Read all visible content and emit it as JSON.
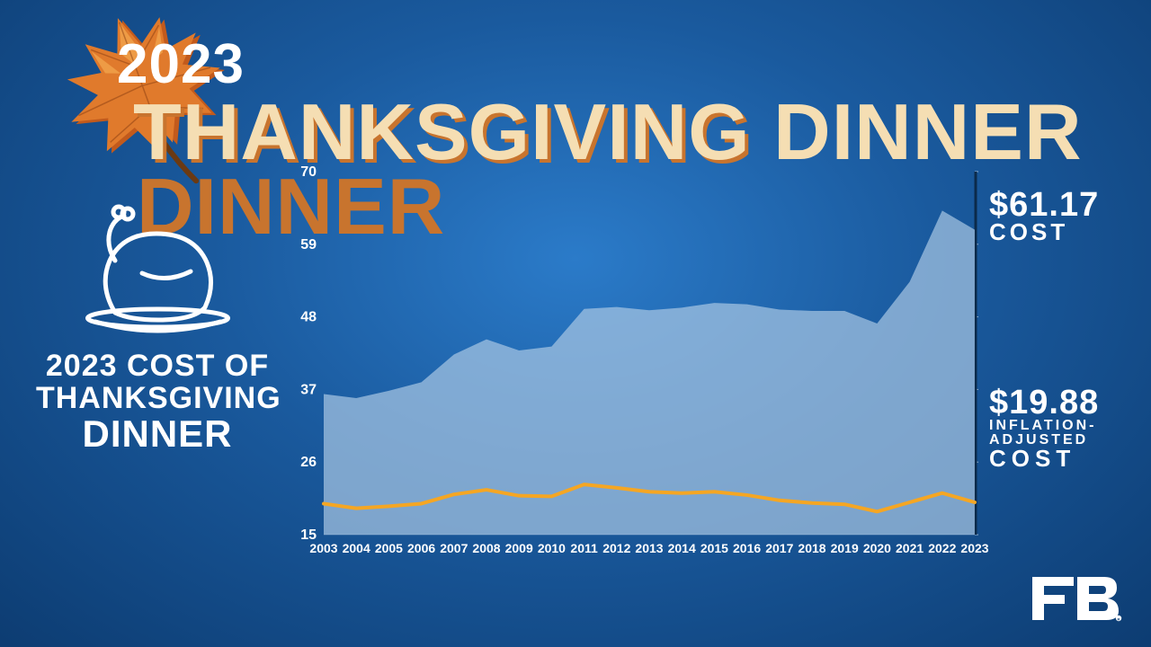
{
  "header": {
    "year": "2023",
    "title": "THANKSGIVING DINNER",
    "title_color_front": "#f5deb3",
    "title_color_shadow": "#c8742e",
    "title_fontsize": 88
  },
  "subtitle": {
    "line1": "2023 COST OF",
    "line2": "THANKSGIVING",
    "line3": "DINNER"
  },
  "chart": {
    "type": "area+line",
    "x_years": [
      2003,
      2004,
      2005,
      2006,
      2007,
      2008,
      2009,
      2010,
      2011,
      2012,
      2013,
      2014,
      2015,
      2016,
      2017,
      2018,
      2019,
      2020,
      2021,
      2022,
      2023
    ],
    "nominal_cost": [
      36.3,
      35.7,
      36.8,
      38.1,
      42.3,
      44.6,
      42.9,
      43.5,
      49.2,
      49.5,
      49.0,
      49.4,
      50.1,
      49.9,
      49.1,
      48.9,
      48.9,
      47.0,
      53.3,
      64.1,
      61.2
    ],
    "inflation_adjusted": [
      19.7,
      19.0,
      19.3,
      19.7,
      21.1,
      21.8,
      20.9,
      20.8,
      22.6,
      22.1,
      21.5,
      21.3,
      21.5,
      21.0,
      20.2,
      19.8,
      19.6,
      18.5,
      19.9,
      21.3,
      19.9
    ],
    "ylim": [
      15,
      70
    ],
    "yticks": [
      15,
      26,
      37,
      48,
      59,
      70
    ],
    "area_fill": "#a9c8e4",
    "area_opacity": 0.7,
    "line_color": "#f5a623",
    "line_width": 4,
    "grid_color": "#9bb8d5",
    "right_axis_color": "#0b2a4a",
    "tick_label_fontsize": 14,
    "label_color": "#ffffff"
  },
  "callouts": {
    "cost_value": "$61.17",
    "cost_label": "COST",
    "infl_value": "$19.88",
    "infl_label1": "INFLATION-",
    "infl_label2": "ADJUSTED",
    "infl_label3": "COST"
  },
  "leaf": {
    "fill_main": "#e07a2c",
    "fill_shadow": "#c25a1c",
    "fill_light": "#f4a950",
    "stem": "#6b3a12"
  },
  "background": {
    "gradient_center": "#2b7bc9",
    "gradient_mid": "#1a5a9e",
    "gradient_edge": "#0d3d73"
  }
}
